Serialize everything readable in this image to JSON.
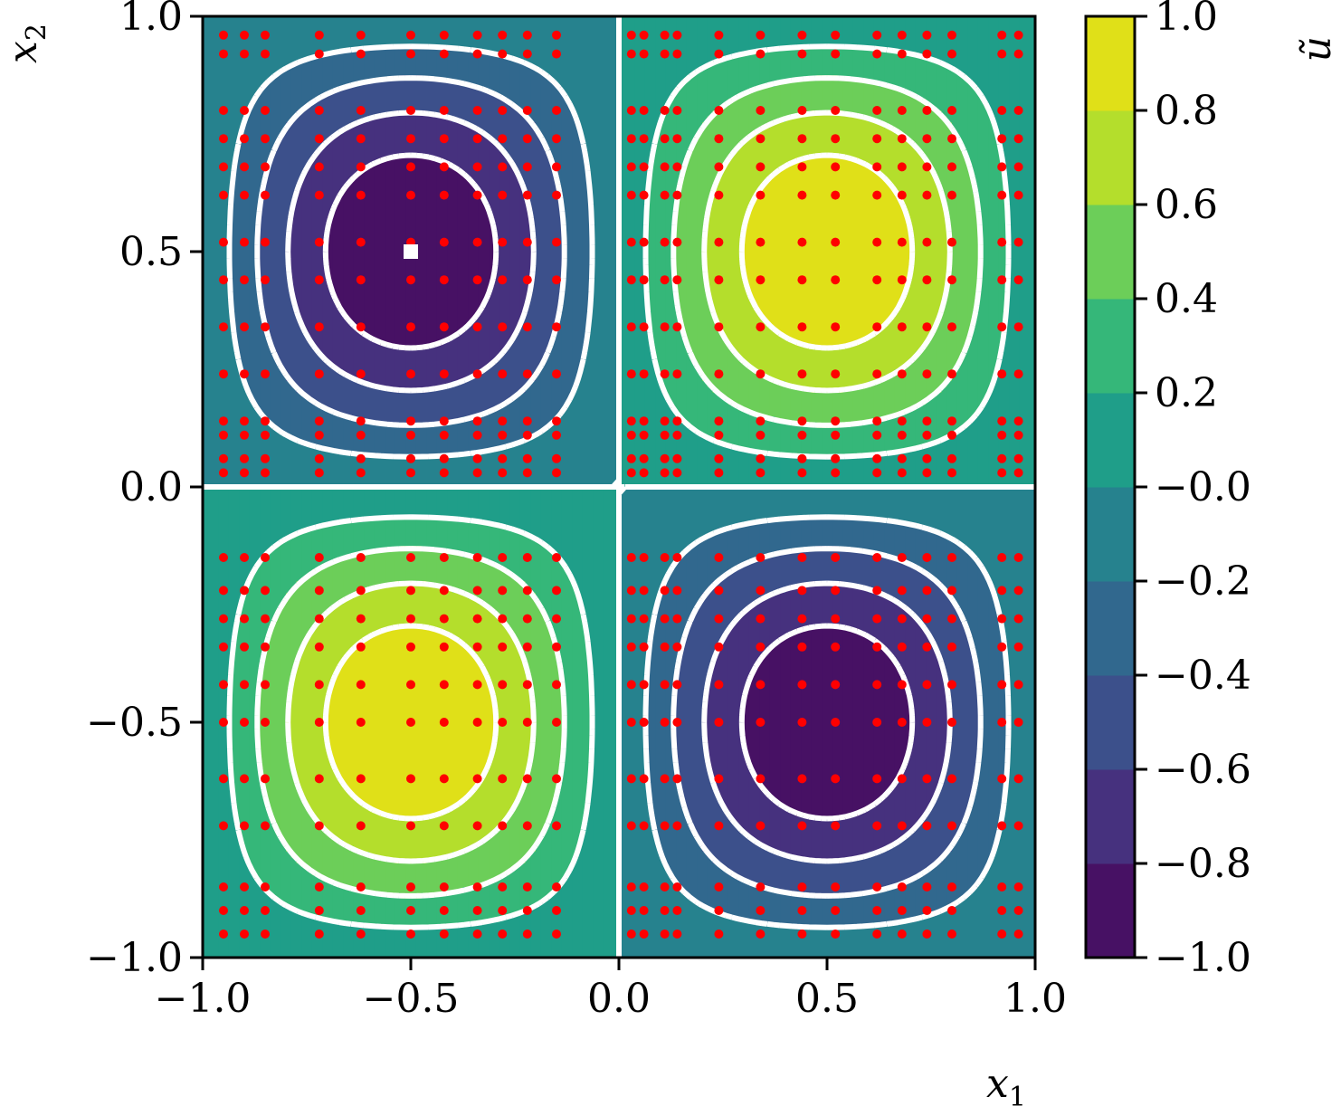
{
  "chart_data": {
    "type": "heatmap",
    "function": "sin(pi*x1)*sin(pi*x2)",
    "xlabel": "x",
    "xlabel_sub": "1",
    "ylabel": "x",
    "ylabel_sub": "2",
    "colorbar_label": "ũ",
    "xlim": [
      -1.0,
      1.0
    ],
    "ylim": [
      -1.0,
      1.0
    ],
    "xticks": [
      -1.0,
      -0.5,
      0.0,
      0.5,
      1.0
    ],
    "xtick_labels": [
      "−1.0",
      "−0.5",
      "0.0",
      "0.5",
      "1.0"
    ],
    "yticks": [
      -1.0,
      -0.5,
      0.0,
      0.5,
      1.0
    ],
    "ytick_labels": [
      "−1.0",
      "−0.5",
      "0.0",
      "0.5",
      "1.0"
    ],
    "colorbar_range": [
      -1.0,
      1.0
    ],
    "colorbar_ticks": [
      1.0,
      0.8,
      0.6,
      0.4,
      0.2,
      0.0,
      -0.2,
      -0.4,
      -0.6,
      -0.8,
      -1.0
    ],
    "colorbar_tick_labels": [
      "1.0",
      "0.8",
      "0.6",
      "0.4",
      "0.2",
      "−0.0",
      "−0.2",
      "−0.4",
      "−0.6",
      "−0.8",
      "−1.0"
    ],
    "levels": [
      -1.0,
      -0.8,
      -0.6,
      -0.4,
      -0.2,
      0.0,
      0.2,
      0.4,
      0.6,
      0.8,
      1.0
    ],
    "level_colors": [
      "#471164",
      "#46317e",
      "#3c508b",
      "#31688e",
      "#26828e",
      "#1f9e89",
      "#35b779",
      "#6cce59",
      "#b4de2c",
      "#e0e018"
    ],
    "contour_levels": [
      -0.8,
      -0.6,
      -0.4,
      -0.2,
      0.0,
      0.2,
      0.4,
      0.6,
      0.8
    ],
    "contour_color": "#ffffff",
    "contour_style": "solid for positive levels, dashed for zero and negative levels",
    "sample_points_color": "#ff0000",
    "sample_point_coords": [
      -0.95,
      -0.9,
      -0.85,
      -0.72,
      -0.62,
      -0.5,
      -0.42,
      -0.34,
      -0.28,
      -0.22,
      -0.15,
      0.03,
      0.06,
      0.11,
      0.14,
      0.24,
      0.34,
      0.44,
      0.52,
      0.62,
      0.68,
      0.74,
      0.8,
      0.92,
      0.96
    ],
    "marked_point": [
      -0.5,
      0.5
    ],
    "marked_point_color": "#ffffff"
  }
}
